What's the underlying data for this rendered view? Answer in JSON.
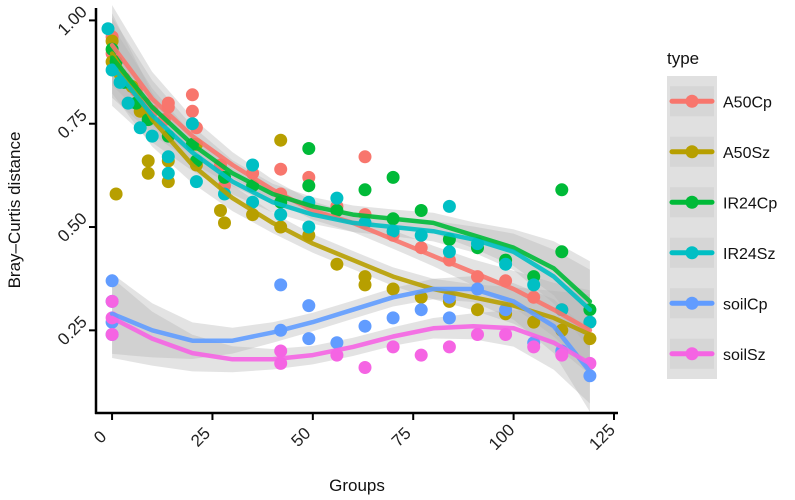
{
  "chart_data": {
    "type": "scatter",
    "title": "",
    "xlabel": "Groups",
    "ylabel": "Bray–Curtis distance",
    "xlim": [
      -4,
      126
    ],
    "ylim": [
      0.05,
      1.03
    ],
    "xticks": [
      0,
      25,
      50,
      75,
      100,
      125
    ],
    "xtick_labels": [
      "0",
      "25",
      "50",
      "75",
      "100",
      "125"
    ],
    "yticks": [
      0.25,
      0.5,
      0.75,
      1.0
    ],
    "ytick_labels": [
      "0.25",
      "0.50",
      "0.75",
      "1.00"
    ],
    "grid": false,
    "legend": {
      "title": "type",
      "position": "right",
      "entries": [
        "A50Cp",
        "A50Sz",
        "IR24Cp",
        "IR24Sz",
        "soilCp",
        "soilSz"
      ]
    },
    "series": [
      {
        "name": "A50Cp",
        "color": "#F8766D",
        "points": [
          [
            0,
            0.96
          ],
          [
            0,
            0.92
          ],
          [
            1,
            0.88
          ],
          [
            3,
            0.86
          ],
          [
            6,
            0.83
          ],
          [
            8,
            0.8
          ],
          [
            10,
            0.78
          ],
          [
            13,
            0.76
          ],
          [
            14,
            0.79
          ],
          [
            14,
            0.8
          ],
          [
            20,
            0.82
          ],
          [
            20,
            0.78
          ],
          [
            21,
            0.74
          ],
          [
            27,
            0.65
          ],
          [
            28,
            0.6
          ],
          [
            35,
            0.63
          ],
          [
            42,
            0.64
          ],
          [
            42,
            0.58
          ],
          [
            49,
            0.62
          ],
          [
            56,
            0.55
          ],
          [
            63,
            0.67
          ],
          [
            63,
            0.53
          ],
          [
            70,
            0.48
          ],
          [
            77,
            0.45
          ],
          [
            84,
            0.42
          ],
          [
            91,
            0.38
          ],
          [
            98,
            0.37
          ],
          [
            105,
            0.33
          ],
          [
            112,
            0.3
          ],
          [
            119,
            0.27
          ]
        ],
        "trend": [
          [
            0,
            0.94
          ],
          [
            10,
            0.81
          ],
          [
            20,
            0.72
          ],
          [
            30,
            0.65
          ],
          [
            40,
            0.59
          ],
          [
            50,
            0.54
          ],
          [
            60,
            0.51
          ],
          [
            70,
            0.47
          ],
          [
            80,
            0.43
          ],
          [
            90,
            0.39
          ],
          [
            100,
            0.35
          ],
          [
            110,
            0.3
          ],
          [
            119,
            0.25
          ]
        ]
      },
      {
        "name": "A50Sz",
        "color": "#B79F00",
        "points": [
          [
            0,
            0.95
          ],
          [
            0,
            0.9
          ],
          [
            1,
            0.58
          ],
          [
            2,
            0.87
          ],
          [
            5,
            0.84
          ],
          [
            7,
            0.78
          ],
          [
            9,
            0.63
          ],
          [
            9,
            0.66
          ],
          [
            14,
            0.61
          ],
          [
            14,
            0.66
          ],
          [
            21,
            0.7
          ],
          [
            21,
            0.65
          ],
          [
            27,
            0.54
          ],
          [
            28,
            0.51
          ],
          [
            35,
            0.53
          ],
          [
            42,
            0.71
          ],
          [
            42,
            0.5
          ],
          [
            49,
            0.48
          ],
          [
            56,
            0.41
          ],
          [
            63,
            0.38
          ],
          [
            63,
            0.36
          ],
          [
            70,
            0.35
          ],
          [
            77,
            0.33
          ],
          [
            84,
            0.32
          ],
          [
            91,
            0.3
          ],
          [
            98,
            0.29
          ],
          [
            105,
            0.27
          ],
          [
            112,
            0.25
          ],
          [
            119,
            0.23
          ]
        ],
        "trend": [
          [
            0,
            0.92
          ],
          [
            10,
            0.76
          ],
          [
            20,
            0.65
          ],
          [
            30,
            0.57
          ],
          [
            40,
            0.51
          ],
          [
            50,
            0.46
          ],
          [
            60,
            0.42
          ],
          [
            70,
            0.38
          ],
          [
            80,
            0.35
          ],
          [
            90,
            0.33
          ],
          [
            100,
            0.31
          ],
          [
            110,
            0.28
          ],
          [
            119,
            0.24
          ]
        ]
      },
      {
        "name": "IR24Cp",
        "color": "#00BA38",
        "points": [
          [
            0,
            0.93
          ],
          [
            1,
            0.9
          ],
          [
            3,
            0.85
          ],
          [
            6,
            0.8
          ],
          [
            9,
            0.76
          ],
          [
            14,
            0.72
          ],
          [
            20,
            0.7
          ],
          [
            21,
            0.66
          ],
          [
            28,
            0.62
          ],
          [
            35,
            0.6
          ],
          [
            42,
            0.56
          ],
          [
            49,
            0.69
          ],
          [
            49,
            0.6
          ],
          [
            56,
            0.54
          ],
          [
            63,
            0.59
          ],
          [
            70,
            0.62
          ],
          [
            70,
            0.52
          ],
          [
            77,
            0.54
          ],
          [
            84,
            0.47
          ],
          [
            91,
            0.45
          ],
          [
            98,
            0.42
          ],
          [
            105,
            0.38
          ],
          [
            112,
            0.59
          ],
          [
            112,
            0.44
          ],
          [
            119,
            0.3
          ]
        ],
        "trend": [
          [
            0,
            0.91
          ],
          [
            10,
            0.79
          ],
          [
            20,
            0.7
          ],
          [
            30,
            0.63
          ],
          [
            40,
            0.58
          ],
          [
            50,
            0.55
          ],
          [
            60,
            0.53
          ],
          [
            70,
            0.52
          ],
          [
            80,
            0.51
          ],
          [
            90,
            0.48
          ],
          [
            100,
            0.45
          ],
          [
            110,
            0.4
          ],
          [
            119,
            0.32
          ]
        ]
      },
      {
        "name": "IR24Sz",
        "color": "#00BFC4",
        "points": [
          [
            -1,
            0.98
          ],
          [
            0,
            0.88
          ],
          [
            2,
            0.85
          ],
          [
            4,
            0.8
          ],
          [
            7,
            0.74
          ],
          [
            10,
            0.72
          ],
          [
            14,
            0.67
          ],
          [
            14,
            0.63
          ],
          [
            20,
            0.75
          ],
          [
            21,
            0.61
          ],
          [
            28,
            0.58
          ],
          [
            35,
            0.65
          ],
          [
            35,
            0.56
          ],
          [
            42,
            0.53
          ],
          [
            49,
            0.56
          ],
          [
            49,
            0.5
          ],
          [
            56,
            0.57
          ],
          [
            63,
            0.51
          ],
          [
            70,
            0.49
          ],
          [
            77,
            0.48
          ],
          [
            84,
            0.55
          ],
          [
            84,
            0.44
          ],
          [
            91,
            0.46
          ],
          [
            98,
            0.41
          ],
          [
            105,
            0.36
          ],
          [
            112,
            0.3
          ],
          [
            119,
            0.27
          ]
        ],
        "trend": [
          [
            0,
            0.89
          ],
          [
            10,
            0.77
          ],
          [
            20,
            0.68
          ],
          [
            30,
            0.61
          ],
          [
            40,
            0.56
          ],
          [
            50,
            0.53
          ],
          [
            60,
            0.51
          ],
          [
            70,
            0.5
          ],
          [
            80,
            0.49
          ],
          [
            90,
            0.47
          ],
          [
            100,
            0.44
          ],
          [
            110,
            0.38
          ],
          [
            119,
            0.3
          ]
        ]
      },
      {
        "name": "soilCp",
        "color": "#619CFF",
        "points": [
          [
            0,
            0.37
          ],
          [
            0,
            0.32
          ],
          [
            0,
            0.27
          ],
          [
            0,
            0.24
          ],
          [
            42,
            0.36
          ],
          [
            42,
            0.25
          ],
          [
            49,
            0.31
          ],
          [
            49,
            0.23
          ],
          [
            56,
            0.22
          ],
          [
            63,
            0.26
          ],
          [
            70,
            0.28
          ],
          [
            77,
            0.3
          ],
          [
            84,
            0.33
          ],
          [
            84,
            0.28
          ],
          [
            91,
            0.35
          ],
          [
            98,
            0.3
          ],
          [
            105,
            0.22
          ],
          [
            112,
            0.2
          ],
          [
            119,
            0.14
          ]
        ],
        "trend": [
          [
            0,
            0.29
          ],
          [
            10,
            0.25
          ],
          [
            20,
            0.225
          ],
          [
            30,
            0.225
          ],
          [
            40,
            0.245
          ],
          [
            50,
            0.27
          ],
          [
            60,
            0.3
          ],
          [
            70,
            0.33
          ],
          [
            80,
            0.35
          ],
          [
            90,
            0.35
          ],
          [
            100,
            0.32
          ],
          [
            110,
            0.26
          ],
          [
            119,
            0.15
          ]
        ]
      },
      {
        "name": "soilSz",
        "color": "#F564E3",
        "points": [
          [
            0,
            0.32
          ],
          [
            0,
            0.28
          ],
          [
            0,
            0.24
          ],
          [
            42,
            0.2
          ],
          [
            42,
            0.17
          ],
          [
            56,
            0.19
          ],
          [
            63,
            0.16
          ],
          [
            70,
            0.21
          ],
          [
            77,
            0.19
          ],
          [
            84,
            0.21
          ],
          [
            91,
            0.24
          ],
          [
            98,
            0.24
          ],
          [
            105,
            0.21
          ],
          [
            112,
            0.19
          ],
          [
            119,
            0.17
          ]
        ],
        "trend": [
          [
            0,
            0.28
          ],
          [
            10,
            0.23
          ],
          [
            20,
            0.195
          ],
          [
            30,
            0.18
          ],
          [
            40,
            0.18
          ],
          [
            50,
            0.19
          ],
          [
            60,
            0.21
          ],
          [
            70,
            0.235
          ],
          [
            80,
            0.255
          ],
          [
            90,
            0.26
          ],
          [
            100,
            0.255
          ],
          [
            110,
            0.22
          ],
          [
            119,
            0.17
          ]
        ]
      }
    ]
  }
}
